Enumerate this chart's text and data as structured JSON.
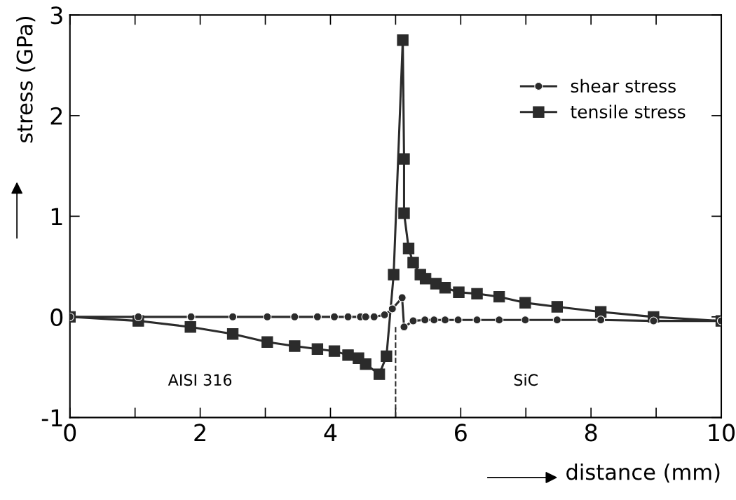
{
  "chart_data": {
    "type": "line",
    "xlabel": "distance (mm)",
    "ylabel": "stress (GPa)",
    "xlim": [
      0,
      10
    ],
    "ylim": [
      -1,
      3
    ],
    "xticks": [
      0,
      {
        "value": 1,
        "label": null
      },
      2,
      {
        "value": 3,
        "label": null
      },
      4,
      {
        "value": 5,
        "label": null
      },
      6,
      {
        "value": 7,
        "label": null
      },
      8,
      {
        "value": 9,
        "label": null
      },
      10
    ],
    "yticks": [
      -1,
      0,
      1,
      2,
      3
    ],
    "grid": false,
    "legend": "top right",
    "series": [
      {
        "name": "shear stress",
        "color": "#2b2b2b",
        "marker": "circle",
        "x": [
          0,
          1.05,
          1.86,
          2.5,
          3.03,
          3.45,
          3.8,
          4.06,
          4.27,
          4.46,
          4.54,
          4.67,
          4.83,
          4.95,
          5.1,
          5.13,
          5.27,
          5.45,
          5.59,
          5.76,
          5.96,
          6.25,
          6.59,
          6.99,
          7.48,
          8.15,
          8.96,
          10
        ],
        "values": [
          0,
          0,
          0,
          0,
          0,
          0,
          0,
          0,
          0,
          0,
          0,
          0,
          0.02,
          0.08,
          0.19,
          -0.1,
          -0.04,
          -0.03,
          -0.03,
          -0.03,
          -0.03,
          -0.03,
          -0.03,
          -0.03,
          -0.03,
          -0.03,
          -0.04,
          -0.04
        ]
      },
      {
        "name": "tensile stress",
        "color": "#2b2b2b",
        "marker": "square",
        "x": [
          0,
          1.05,
          1.85,
          2.5,
          3.03,
          3.45,
          3.8,
          4.06,
          4.27,
          4.43,
          4.54,
          4.75,
          4.86,
          4.97,
          5.11,
          5.13,
          5.13,
          5.2,
          5.27,
          5.38,
          5.46,
          5.62,
          5.76,
          5.97,
          6.25,
          6.59,
          6.99,
          7.48,
          8.15,
          8.96,
          10
        ],
        "values": [
          0,
          -0.04,
          -0.1,
          -0.17,
          -0.25,
          -0.29,
          -0.32,
          -0.34,
          -0.38,
          -0.41,
          -0.47,
          -0.57,
          -0.39,
          0.42,
          2.75,
          1.57,
          1.03,
          0.68,
          0.54,
          0.42,
          0.38,
          0.33,
          0.29,
          0.245,
          0.23,
          0.2,
          0.14,
          0.1,
          0.05,
          0,
          -0.04
        ]
      }
    ],
    "ref_lines": [
      {
        "axis": "x",
        "value": 5,
        "line_style": "dashed",
        "color": "#2b2b2b"
      }
    ],
    "annotations": [
      "AISI 316",
      "SiC"
    ]
  }
}
